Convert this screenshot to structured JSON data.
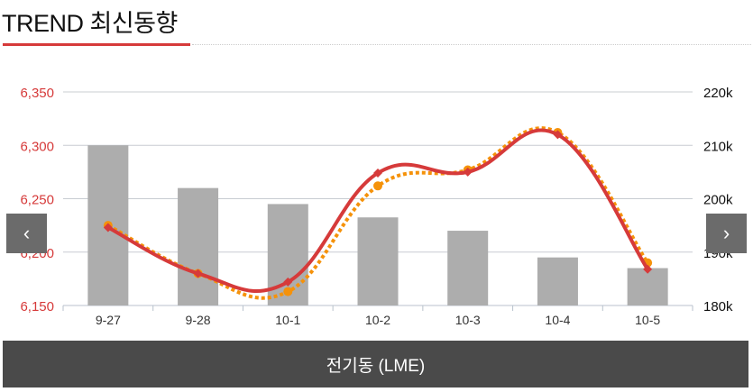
{
  "header": {
    "title": "TREND 최신동향"
  },
  "footer": {
    "label": "전기동 (LME)"
  },
  "nav": {
    "prev_icon": "‹",
    "next_icon": "›"
  },
  "colors": {
    "line": "#d63a3a",
    "dotted": "#f5920a",
    "bar": "#adadad",
    "left_axis": "#d63a3a",
    "grid": "#c8ccd2"
  },
  "chart_data": {
    "type": "bar+line",
    "categories": [
      "9-27",
      "9-28",
      "10-1",
      "10-2",
      "10-3",
      "10-4",
      "10-5"
    ],
    "left_axis": {
      "ylim": [
        6150,
        6350
      ],
      "ticks": [
        "6,150",
        "6,200",
        "6,250",
        "6,300",
        "6,350"
      ],
      "tick_values": [
        6150,
        6200,
        6250,
        6300,
        6350
      ]
    },
    "right_axis": {
      "ylim": [
        180,
        220
      ],
      "ticks": [
        "180k",
        "190k",
        "200k",
        "210k",
        "220k"
      ],
      "tick_values": [
        180,
        190,
        200,
        210,
        220
      ]
    },
    "series": [
      {
        "name": "bars",
        "type": "bar",
        "axis": "right",
        "values": [
          210,
          202,
          199,
          196.5,
          194,
          189,
          187
        ]
      },
      {
        "name": "line",
        "type": "line",
        "axis": "left",
        "values": [
          6223,
          6180,
          6172,
          6274,
          6275,
          6310,
          6184
        ]
      },
      {
        "name": "dotted",
        "type": "line-dotted",
        "axis": "left",
        "values": [
          6225,
          6180,
          6163,
          6262,
          6277,
          6312,
          6190
        ]
      }
    ],
    "grid": true
  }
}
